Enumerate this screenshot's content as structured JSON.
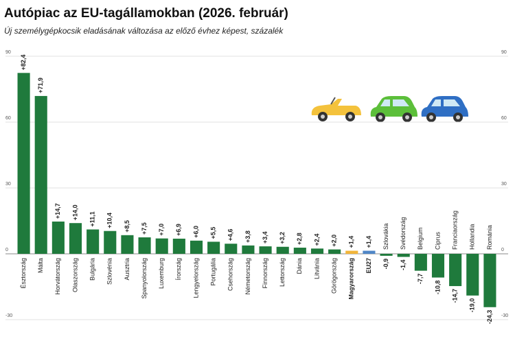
{
  "chart_data": {
    "type": "bar",
    "title": "Autópiac az EU-tagállamokban (2026. február)",
    "subtitle": "Új személygépkocsik eladásának változása az előző évhez képest, százalék",
    "categories": [
      "Észtország",
      "Málta",
      "Horvátország",
      "Olaszország",
      "Bulgária",
      "Szlovénia",
      "Ausztria",
      "Spanyolország",
      "Luxemburg",
      "Írország",
      "Lengyelország",
      "Portugália",
      "Csehország",
      "Németország",
      "Finnország",
      "Lettország",
      "Dánia",
      "Litvánia",
      "Görögország",
      "Magyarország",
      "EU27",
      "Szlovákia",
      "Svédország",
      "Belgium",
      "Ciprus",
      "Franciaország",
      "Hollandia",
      "Románia"
    ],
    "values": [
      82.4,
      71.9,
      14.7,
      14.0,
      11.1,
      10.4,
      8.5,
      7.5,
      7.0,
      6.9,
      6.0,
      5.5,
      4.6,
      3.8,
      3.4,
      3.2,
      2.8,
      2.4,
      2.0,
      1.4,
      1.4,
      -0.9,
      -1.4,
      -7.7,
      -10.8,
      -14.7,
      -19.0,
      -24.3
    ],
    "value_labels": [
      "+82,4",
      "+71,9",
      "+14,7",
      "+14,0",
      "+11,1",
      "+10,4",
      "+8,5",
      "+7,5",
      "+7,0",
      "+6,9",
      "+6,0",
      "+5,5",
      "+4,6",
      "+3,8",
      "+3,4",
      "+3,2",
      "+2,8",
      "+2,4",
      "+2,0",
      "+1,4",
      "+1,4",
      "-0,9",
      "-1,4",
      "-7,7",
      "-10,8",
      "-14,7",
      "-19,0",
      "-24,3"
    ],
    "color": "#1f7a3c",
    "colors": [
      "#1f7a3c",
      "#1f7a3c",
      "#1f7a3c",
      "#1f7a3c",
      "#1f7a3c",
      "#1f7a3c",
      "#1f7a3c",
      "#1f7a3c",
      "#1f7a3c",
      "#1f7a3c",
      "#1f7a3c",
      "#1f7a3c",
      "#1f7a3c",
      "#1f7a3c",
      "#1f7a3c",
      "#1f7a3c",
      "#1f7a3c",
      "#1f7a3c",
      "#1f7a3c",
      "#f2b53a",
      "#4f86c6",
      "#1f7a3c",
      "#1f7a3c",
      "#1f7a3c",
      "#1f7a3c",
      "#1f7a3c",
      "#1f7a3c",
      "#1f7a3c"
    ],
    "ylim": [
      -30,
      90
    ],
    "yticks": [
      -30,
      0,
      30,
      60,
      90
    ],
    "grid": true
  }
}
